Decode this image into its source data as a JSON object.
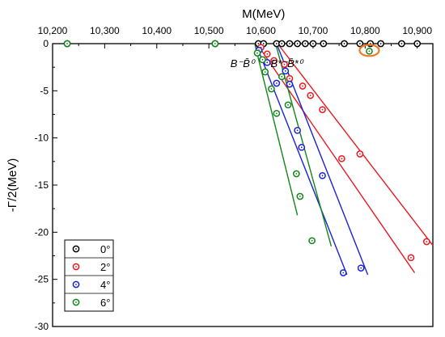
{
  "chart_data": {
    "type": "scatter",
    "xlabel": "M(MeV)",
    "ylabel": "-Γ/2(MeV)",
    "xlim": [
      10200,
      10930
    ],
    "ylim": [
      -30,
      0
    ],
    "x_ticks": [
      10200,
      10300,
      10400,
      10500,
      10600,
      10700,
      10800,
      10900
    ],
    "x_tick_labels": [
      "10,200",
      "10,300",
      "10,400",
      "10,500",
      "10,600",
      "10,700",
      "10,800",
      "10,900"
    ],
    "y_ticks": [
      0,
      -5,
      -10,
      -15,
      -20,
      -25,
      -30
    ],
    "y_tick_labels": [
      "0",
      "-5",
      "-10",
      "-15",
      "-20",
      "-25",
      "-30"
    ],
    "x_axis_position": "top",
    "grid": false,
    "legend": "bottom-left",
    "colors": {
      "0°": "#000000",
      "2°": "#e8191f",
      "4°": "#1a22d6",
      "6°": "#12861a",
      "highlight": "#f07a1e"
    },
    "annotations": [
      {
        "text": "B⁻B̄⁰",
        "x": 10587,
        "y": -1.3
      },
      {
        "text": "B*⁻B̄*⁰",
        "x": 10680,
        "y": -1.3
      }
    ],
    "highlight": {
      "x": 10808,
      "y": -0.8,
      "note": "orange ellipse"
    },
    "series": [
      {
        "name": "0°",
        "points": [
          [
            10228,
            0
          ],
          [
            10512,
            0
          ],
          [
            10595,
            0
          ],
          [
            10605,
            0
          ],
          [
            10630,
            0
          ],
          [
            10640,
            0
          ],
          [
            10655,
            0
          ],
          [
            10670,
            0
          ],
          [
            10685,
            0
          ],
          [
            10700,
            0
          ],
          [
            10720,
            0
          ],
          [
            10760,
            0
          ],
          [
            10790,
            0
          ],
          [
            10810,
            0
          ],
          [
            10830,
            0
          ],
          [
            10870,
            0
          ],
          [
            10900,
            0
          ]
        ],
        "lines": []
      },
      {
        "name": "2°",
        "points": [
          [
            10600,
            -0.4
          ],
          [
            10612,
            -1.1
          ],
          [
            10625,
            -1.8
          ],
          [
            10645,
            -2.2
          ],
          [
            10655,
            -3.7
          ],
          [
            10680,
            -4.5
          ],
          [
            10695,
            -5.5
          ],
          [
            10718,
            -7.0
          ],
          [
            10755,
            -12.2
          ],
          [
            10790,
            -11.7
          ],
          [
            10888,
            -22.7
          ],
          [
            10918,
            -21.0
          ]
        ],
        "lines": [
          {
            "from": [
              10592,
              0
            ],
            "to": [
              10895,
              -24.3
            ]
          },
          {
            "from": [
              10632,
              0
            ],
            "to": [
              10930,
              -21.4
            ]
          }
        ]
      },
      {
        "name": "4°",
        "points": [
          [
            10596,
            -0.7
          ],
          [
            10612,
            -2.0
          ],
          [
            10630,
            -4.2
          ],
          [
            10647,
            -2.9
          ],
          [
            10655,
            -4.3
          ],
          [
            10670,
            -9.2
          ],
          [
            10678,
            -11.0
          ],
          [
            10718,
            -14.0
          ],
          [
            10758,
            -24.3
          ],
          [
            10792,
            -23.8
          ]
        ],
        "lines": [
          {
            "from": [
              10590,
              0
            ],
            "to": [
              10765,
              -24.5
            ]
          },
          {
            "from": [
              10630,
              0
            ],
            "to": [
              10805,
              -24.5
            ]
          }
        ]
      },
      {
        "name": "6°",
        "points": [
          [
            10228,
            0
          ],
          [
            10512,
            0
          ],
          [
            10593,
            -1.0
          ],
          [
            10603,
            -1.7
          ],
          [
            10608,
            -3.0
          ],
          [
            10620,
            -4.8
          ],
          [
            10630,
            -7.4
          ],
          [
            10640,
            -3.5
          ],
          [
            10652,
            -6.5
          ],
          [
            10668,
            -13.8
          ],
          [
            10675,
            -16.2
          ],
          [
            10698,
            -20.9
          ]
        ],
        "lines": [
          {
            "from": [
              10588,
              0
            ],
            "to": [
              10670,
              -18.2
            ]
          },
          {
            "from": [
              10628,
              0
            ],
            "to": [
              10735,
              -21.5
            ]
          }
        ]
      }
    ]
  }
}
